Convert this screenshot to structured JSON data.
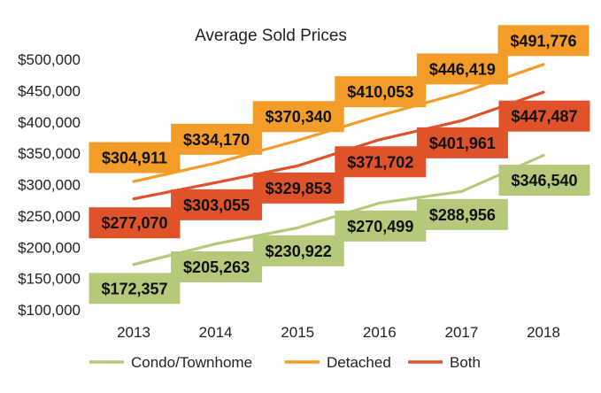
{
  "chart_data": {
    "type": "line",
    "title": "Average Sold Prices",
    "categories": [
      "2013",
      "2014",
      "2015",
      "2016",
      "2017",
      "2018"
    ],
    "y_tick_labels": [
      "$100,000",
      "$150,000",
      "$200,000",
      "$250,000",
      "$300,000",
      "$350,000",
      "$400,000",
      "$450,000",
      "$500,000"
    ],
    "ylim": [
      100000,
      500000
    ],
    "grid": false,
    "legend_position": "bottom",
    "series": [
      {
        "name": "Condo/Townhome",
        "color": "#b5c97b",
        "values": [
          172357,
          205263,
          230922,
          270499,
          288956,
          346540
        ],
        "labels": [
          "$172,357",
          "$205,263",
          "$230,922",
          "$270,499",
          "$288,956",
          "$346,540"
        ]
      },
      {
        "name": "Detached",
        "color": "#f39c27",
        "values": [
          304911,
          334170,
          370340,
          410053,
          446419,
          491776
        ],
        "labels": [
          "$304,911",
          "$334,170",
          "$370,340",
          "$410,053",
          "$446,419",
          "$491,776"
        ]
      },
      {
        "name": "Both",
        "color": "#e0522a",
        "values": [
          277070,
          303055,
          329853,
          371702,
          401961,
          447487
        ],
        "labels": [
          "$277,070",
          "$303,055",
          "$329,853",
          "$371,702",
          "$401,961",
          "$447,487"
        ]
      }
    ]
  }
}
